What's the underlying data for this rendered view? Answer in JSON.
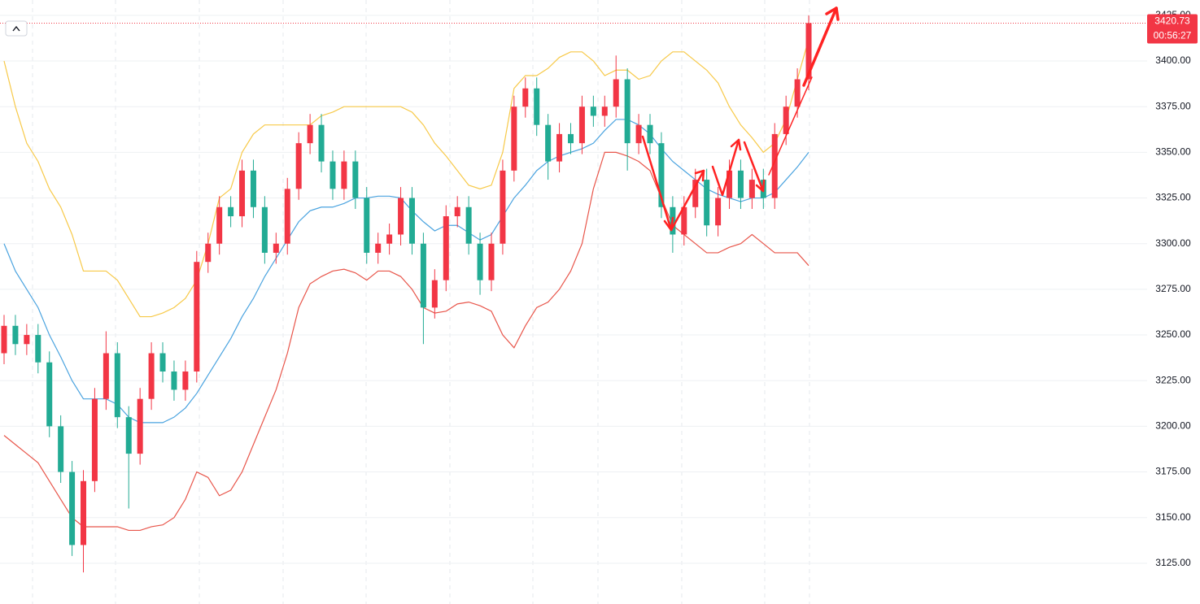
{
  "chart_data": {
    "type": "candlestick",
    "up_color": "#f23645",
    "down_color": "#22ab94",
    "open": [
      3240,
      3255,
      3245,
      3250,
      3235,
      3200,
      3175,
      3135,
      3170,
      3215,
      3240,
      3205,
      3185,
      3215,
      3240,
      3230,
      3220,
      3230,
      3290,
      3300,
      3320,
      3315,
      3340,
      3320,
      3295,
      3300,
      3330,
      3355,
      3365,
      3345,
      3330,
      3345,
      3325,
      3295,
      3300,
      3305,
      3325,
      3300,
      3265,
      3280,
      3315,
      3320,
      3300,
      3280,
      3300,
      3340,
      3375,
      3385,
      3365,
      3345,
      3360,
      3355,
      3375,
      3370,
      3375,
      3390,
      3355,
      3365,
      3355,
      3320,
      3305,
      3320,
      3335,
      3310,
      3325,
      3340,
      3325,
      3335,
      3325,
      3360,
      3375,
      3390
    ],
    "high": [
      3261,
      3261,
      3256,
      3256,
      3241,
      3206,
      3181,
      3176,
      3221,
      3252,
      3246,
      3211,
      3221,
      3246,
      3246,
      3236,
      3236,
      3296,
      3306,
      3326,
      3326,
      3346,
      3346,
      3326,
      3306,
      3336,
      3361,
      3371,
      3371,
      3351,
      3351,
      3351,
      3331,
      3306,
      3311,
      3331,
      3331,
      3306,
      3286,
      3321,
      3326,
      3326,
      3306,
      3306,
      3346,
      3381,
      3391,
      3391,
      3371,
      3366,
      3366,
      3381,
      3381,
      3381,
      3403,
      3396,
      3371,
      3371,
      3361,
      3326,
      3326,
      3341,
      3341,
      3331,
      3346,
      3346,
      3341,
      3341,
      3366,
      3381,
      3396,
      3425
    ],
    "low": [
      3234,
      3239,
      3239,
      3229,
      3194,
      3169,
      3129,
      3120,
      3164,
      3209,
      3199,
      3155,
      3179,
      3209,
      3224,
      3214,
      3214,
      3224,
      3284,
      3294,
      3309,
      3309,
      3314,
      3289,
      3289,
      3294,
      3324,
      3349,
      3339,
      3324,
      3324,
      3319,
      3289,
      3289,
      3294,
      3299,
      3294,
      3245,
      3259,
      3274,
      3309,
      3294,
      3272,
      3274,
      3294,
      3334,
      3369,
      3359,
      3335,
      3339,
      3349,
      3349,
      3364,
      3364,
      3369,
      3340,
      3349,
      3349,
      3314,
      3295,
      3299,
      3314,
      3304,
      3304,
      3319,
      3319,
      3319,
      3319,
      3319,
      3354,
      3369,
      3384
    ],
    "close": [
      3255,
      3245,
      3250,
      3235,
      3200,
      3175,
      3135,
      3170,
      3215,
      3240,
      3205,
      3185,
      3215,
      3240,
      3230,
      3220,
      3230,
      3290,
      3300,
      3320,
      3315,
      3340,
      3320,
      3295,
      3300,
      3330,
      3355,
      3365,
      3345,
      3330,
      3345,
      3325,
      3295,
      3300,
      3305,
      3325,
      3300,
      3265,
      3280,
      3315,
      3320,
      3300,
      3280,
      3300,
      3340,
      3375,
      3385,
      3365,
      3345,
      3360,
      3355,
      3375,
      3370,
      3375,
      3390,
      3355,
      3365,
      3355,
      3320,
      3305,
      3320,
      3335,
      3310,
      3325,
      3340,
      3325,
      3335,
      3325,
      3360,
      3375,
      3390,
      3420.73
    ],
    "bands": [
      {
        "color": "#f7c948",
        "values": [
          3400,
          3375,
          3355,
          3345,
          3330,
          3320,
          3305,
          3285,
          3285,
          3285,
          3280,
          3270,
          3260,
          3260,
          3262,
          3265,
          3270,
          3280,
          3300,
          3325,
          3330,
          3350,
          3360,
          3365,
          3365,
          3365,
          3365,
          3365,
          3370,
          3372,
          3375,
          3375,
          3375,
          3375,
          3375,
          3375,
          3372,
          3365,
          3355,
          3348,
          3340,
          3332,
          3330,
          3332,
          3350,
          3385,
          3392,
          3392,
          3396,
          3402,
          3405,
          3405,
          3400,
          3392,
          3395,
          3395,
          3390,
          3392,
          3400,
          3405,
          3405,
          3400,
          3395,
          3388,
          3375,
          3365,
          3358,
          3350,
          3355,
          3368,
          3390,
          3412
        ]
      },
      {
        "color": "#4aa3df",
        "values": [
          3300,
          3285,
          3275,
          3265,
          3250,
          3238,
          3225,
          3215,
          3215,
          3215,
          3212,
          3205,
          3202,
          3202,
          3202,
          3205,
          3210,
          3218,
          3228,
          3238,
          3248,
          3260,
          3270,
          3282,
          3292,
          3302,
          3312,
          3318,
          3320,
          3320,
          3322,
          3325,
          3325,
          3326,
          3326,
          3325,
          3318,
          3312,
          3307,
          3310,
          3310,
          3306,
          3302,
          3305,
          3315,
          3325,
          3332,
          3340,
          3345,
          3348,
          3350,
          3352,
          3355,
          3362,
          3368,
          3368,
          3365,
          3360,
          3352,
          3345,
          3340,
          3335,
          3330,
          3327,
          3325,
          3323,
          3325,
          3325,
          3328,
          3335,
          3342,
          3350
        ]
      },
      {
        "color": "#e8554a",
        "values": [
          3195,
          3190,
          3185,
          3180,
          3170,
          3160,
          3150,
          3145,
          3145,
          3145,
          3145,
          3143,
          3143,
          3145,
          3146,
          3150,
          3160,
          3175,
          3172,
          3162,
          3165,
          3175,
          3190,
          3205,
          3220,
          3240,
          3265,
          3278,
          3282,
          3285,
          3286,
          3284,
          3280,
          3285,
          3285,
          3282,
          3275,
          3265,
          3262,
          3263,
          3267,
          3268,
          3266,
          3263,
          3250,
          3243,
          3255,
          3265,
          3268,
          3275,
          3285,
          3300,
          3330,
          3350,
          3350,
          3348,
          3345,
          3340,
          3325,
          3310,
          3305,
          3300,
          3295,
          3295,
          3298,
          3300,
          3305,
          3300,
          3295,
          3295,
          3295,
          3288
        ]
      }
    ],
    "ylim": [
      3102.7,
      3433.4
    ],
    "yticks": [
      {
        "value": 3125,
        "label": "3125.00"
      },
      {
        "value": 3150,
        "label": "3150.00"
      },
      {
        "value": 3175,
        "label": "3175.00"
      },
      {
        "value": 3200,
        "label": "3200.00"
      },
      {
        "value": 3225,
        "label": "3225.00"
      },
      {
        "value": 3250,
        "label": "3250.00"
      },
      {
        "value": 3275,
        "label": "3275.00"
      },
      {
        "value": 3300,
        "label": "3300.00"
      },
      {
        "value": 3325,
        "label": "3325.00"
      },
      {
        "value": 3350,
        "label": "3350.00"
      },
      {
        "value": 3375,
        "label": "3375.00"
      },
      {
        "value": 3400,
        "label": "3400.00"
      },
      {
        "value": 3425,
        "label": "3425.00"
      }
    ],
    "grid": true,
    "last_price": 3420.73,
    "countdown": "00:56:27"
  }
}
